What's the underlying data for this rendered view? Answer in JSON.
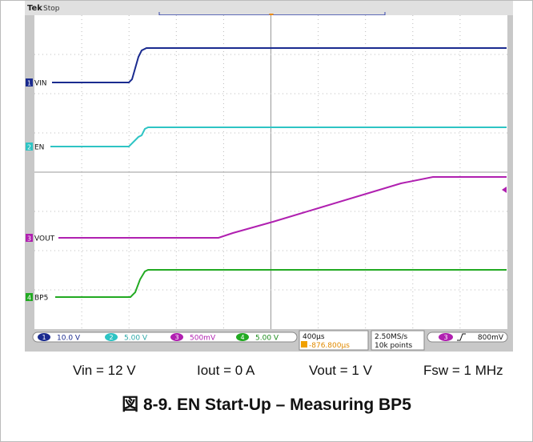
{
  "scope": {
    "brand": "Tek",
    "status": "Stop",
    "channels": [
      {
        "number": "1",
        "label": "VIN",
        "scale": "10.0 V"
      },
      {
        "number": "2",
        "label": "EN",
        "scale": "5.00 V"
      },
      {
        "number": "3",
        "label": "VOUT",
        "scale": "500mV"
      },
      {
        "number": "4",
        "label": "BP5",
        "scale": "5.00 V"
      }
    ],
    "timebase": "400µs",
    "trigger_position": "-876.800µs",
    "sample_rate": "2.50MS/s",
    "record_length": "10k points",
    "trigger_channel": "3",
    "trigger_level": "800mV"
  },
  "conditions": [
    "Vin = 12 V",
    "Iout = 0 A",
    "Vout = 1 V",
    "Fsw = 1 MHz"
  ],
  "figure_title": "図 8-9. EN Start-Up – Measuring BP5"
}
